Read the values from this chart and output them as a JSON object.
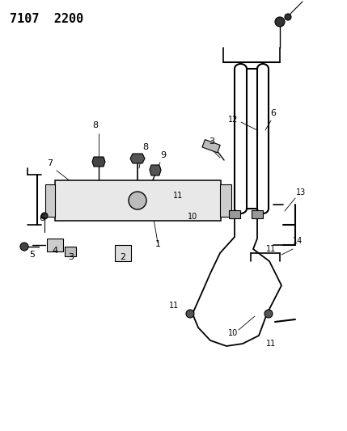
{
  "title": "7107  2200",
  "bg_color": "#ffffff",
  "line_color": "#000000",
  "title_fontsize": 11,
  "label_fontsize": 8,
  "fig_width": 4.29,
  "fig_height": 5.33,
  "dpi": 100
}
